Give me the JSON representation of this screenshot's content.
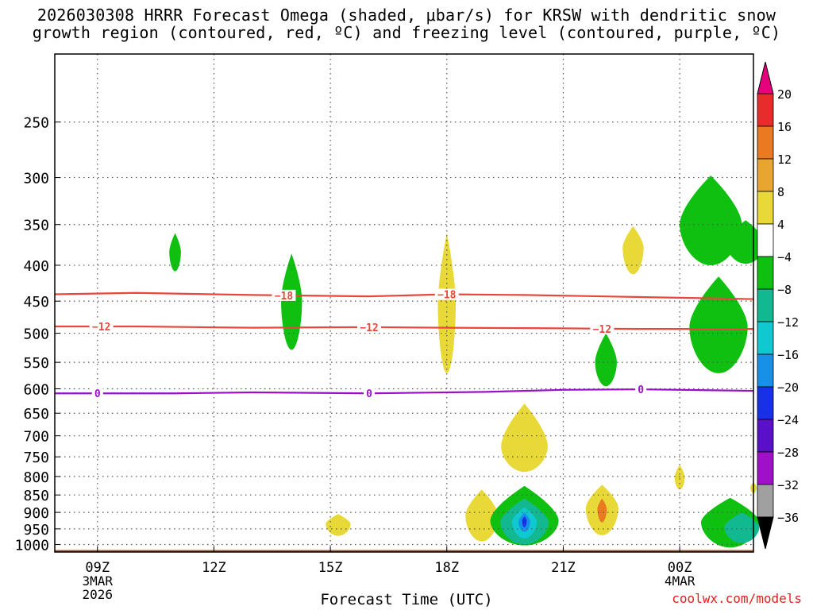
{
  "title": "2026030308 HRRR Forecast Omega (shaded, μbar/s) for KRSW with dendritic snow\ngrowth region (contoured, red, ºC) and freezing level (contoured, purple, ºC)",
  "footer": "coolwx.com/models",
  "colors": {
    "snow_contour": "#e8483b",
    "freezing_contour": "#9a10c8",
    "ground": "#a0522d",
    "grid": "#777777"
  },
  "chart_data": {
    "type": "heatmap",
    "title": "2026030308 HRRR Forecast Omega (shaded, μbar/s) for KRSW with dendritic snow growth region (contoured, red, ºC) and freezing level (contoured, purple, ºC)",
    "xlabel": "Forecast Time (UTC)",
    "ylabel": "",
    "x_range_hours": [
      7.9,
      25.9
    ],
    "y_range_hpa": [
      200,
      1025
    ],
    "y_scale": "log",
    "grid": true,
    "x_ticks": [
      {
        "hour": 9,
        "label": "09Z",
        "sub1": "3MAR",
        "sub2": "2026"
      },
      {
        "hour": 12,
        "label": "12Z",
        "sub1": "",
        "sub2": ""
      },
      {
        "hour": 15,
        "label": "15Z",
        "sub1": "",
        "sub2": ""
      },
      {
        "hour": 18,
        "label": "18Z",
        "sub1": "",
        "sub2": ""
      },
      {
        "hour": 21,
        "label": "21Z",
        "sub1": "",
        "sub2": ""
      },
      {
        "hour": 24,
        "label": "00Z",
        "sub1": "4MAR",
        "sub2": ""
      }
    ],
    "y_ticks": [
      "250",
      "300",
      "350",
      "400",
      "450",
      "500",
      "550",
      "600",
      "650",
      "700",
      "750",
      "800",
      "850",
      "900",
      "950",
      "1000"
    ],
    "colorbar": {
      "labels": [
        "20",
        "16",
        "12",
        "8",
        "4",
        "−4",
        "−8",
        "−12",
        "−16",
        "−20",
        "−24",
        "−28",
        "−32",
        "−36"
      ],
      "colors": [
        "#e5007c",
        "#e82c2c",
        "#ea7a22",
        "#e8a530",
        "#e8d838",
        "#ffffff",
        "#10c010",
        "#12b890",
        "#10c8d0",
        "#1890e8",
        "#1830e8",
        "#5a10c8",
        "#a010c8",
        "#a0a0a0",
        "#000000"
      ]
    },
    "contours": [
      {
        "name": "dendritic-top",
        "label": "−18",
        "color": "#e8483b",
        "label_hours": [
          13.8,
          18.0
        ],
        "points": [
          [
            7.9,
            440
          ],
          [
            10,
            438
          ],
          [
            13,
            441
          ],
          [
            16,
            443
          ],
          [
            18,
            440
          ],
          [
            20,
            441
          ],
          [
            23,
            444
          ],
          [
            25.9,
            447
          ]
        ]
      },
      {
        "name": "dendritic-bottom",
        "label": "−12",
        "color": "#e8483b",
        "label_hours": [
          9.1,
          16.0,
          22.0
        ],
        "points": [
          [
            7.9,
            489
          ],
          [
            10,
            489
          ],
          [
            13,
            491
          ],
          [
            16,
            490
          ],
          [
            18,
            491
          ],
          [
            21,
            492
          ],
          [
            23,
            493
          ],
          [
            25.9,
            493
          ]
        ]
      },
      {
        "name": "freezing-level",
        "label": "0",
        "color": "#9a10c8",
        "label_hours": [
          9.0,
          16.0,
          23.0
        ],
        "points": [
          [
            7.9,
            609
          ],
          [
            11,
            609
          ],
          [
            13,
            607
          ],
          [
            16,
            609
          ],
          [
            19,
            606
          ],
          [
            21,
            602
          ],
          [
            23,
            601
          ],
          [
            25.9,
            604
          ]
        ]
      }
    ],
    "omega_areas": [
      {
        "name": "up-11z-400",
        "value": -4,
        "color": "#10c010",
        "center": [
          11.0,
          383
        ],
        "hw": 0.15,
        "p_top": 360,
        "p_bot": 408
      },
      {
        "name": "up-14z-450",
        "value": -4,
        "color": "#10c010",
        "center": [
          14.0,
          450
        ],
        "hw": 0.27,
        "p_top": 385,
        "p_bot": 528
      },
      {
        "name": "down-18z-450",
        "value": 4,
        "color": "#e8d838",
        "center": [
          18.0,
          455
        ],
        "hw": 0.23,
        "p_top": 360,
        "p_bot": 570
      },
      {
        "name": "down-22z-380",
        "value": 4,
        "color": "#e8d838",
        "center": [
          22.8,
          378
        ],
        "hw": 0.27,
        "p_top": 352,
        "p_bot": 412
      },
      {
        "name": "up-2230-550",
        "value": -4,
        "color": "#10c010",
        "center": [
          22.1,
          550
        ],
        "hw": 0.28,
        "p_top": 500,
        "p_bot": 595
      },
      {
        "name": "down-20z-730",
        "value": 4,
        "color": "#e8d838",
        "center": [
          20.0,
          725
        ],
        "hw": 0.6,
        "p_top": 630,
        "p_bot": 788
      },
      {
        "name": "down-24z-800",
        "value": 4,
        "color": "#e8d838",
        "center": [
          24.0,
          802
        ],
        "hw": 0.13,
        "p_top": 770,
        "p_bot": 835
      },
      {
        "name": "down-15z-950",
        "value": 4,
        "color": "#e8d838",
        "center": [
          15.2,
          935
        ],
        "hw": 0.32,
        "p_top": 905,
        "p_bot": 972
      },
      {
        "name": "down-19z-920",
        "value": 4,
        "color": "#e8d838",
        "center": [
          18.9,
          910
        ],
        "hw": 0.42,
        "p_top": 835,
        "p_bot": 990
      },
      {
        "name": "down-22z-880",
        "value": 4,
        "color": "#e8d838",
        "center": [
          22.0,
          888
        ],
        "hw": 0.42,
        "p_top": 822,
        "p_bot": 970
      },
      {
        "name": "down-22z-880-core",
        "value": 8,
        "color": "#ea7a22",
        "center": [
          22.0,
          890
        ],
        "hw": 0.12,
        "p_top": 860,
        "p_bot": 930
      },
      {
        "name": "up-20z-925",
        "value": -4,
        "color": "#10c010",
        "center": [
          20.0,
          925
        ],
        "hw": 0.88,
        "p_top": 825,
        "p_bot": 1003
      },
      {
        "name": "up-20z-925-m8",
        "value": -8,
        "color": "#12b890",
        "center": [
          20.0,
          930
        ],
        "hw": 0.62,
        "p_top": 860,
        "p_bot": 1000
      },
      {
        "name": "up-20z-925-m12",
        "value": -12,
        "color": "#10c8d0",
        "center": [
          20.0,
          928
        ],
        "hw": 0.32,
        "p_top": 885,
        "p_bot": 980
      },
      {
        "name": "up-20z-925-m16",
        "value": -16,
        "color": "#1890e8",
        "center": [
          20.0,
          928
        ],
        "hw": 0.15,
        "p_top": 900,
        "p_bot": 960
      },
      {
        "name": "up-20z-925-m20",
        "value": -20,
        "color": "#1830e8",
        "center": [
          20.0,
          925
        ],
        "hw": 0.06,
        "p_top": 912,
        "p_bot": 945
      },
      {
        "name": "up-24z-350",
        "value": -4,
        "color": "#10c010",
        "center": [
          24.8,
          350
        ],
        "hw": 0.8,
        "p_top": 298,
        "p_bot": 400
      },
      {
        "name": "up-26z-370",
        "value": -4,
        "color": "#10c010",
        "center": [
          25.7,
          372
        ],
        "hw": 0.5,
        "p_top": 345,
        "p_bot": 398
      },
      {
        "name": "up-24z-490",
        "value": -4,
        "color": "#10c010",
        "center": [
          25.0,
          490
        ],
        "hw": 0.75,
        "p_top": 415,
        "p_bot": 570
      },
      {
        "name": "up-25z-930",
        "value": -4,
        "color": "#10c010",
        "center": [
          25.3,
          930
        ],
        "hw": 0.75,
        "p_top": 858,
        "p_bot": 1010
      },
      {
        "name": "up-25z-930-m8",
        "value": -8,
        "color": "#12b890",
        "center": [
          25.6,
          945
        ],
        "hw": 0.45,
        "p_top": 900,
        "p_bot": 995
      },
      {
        "name": "down-26z-830",
        "value": 4,
        "color": "#e8d838",
        "center": [
          25.9,
          830
        ],
        "hw": 0.08,
        "p_top": 815,
        "p_bot": 845
      }
    ]
  }
}
